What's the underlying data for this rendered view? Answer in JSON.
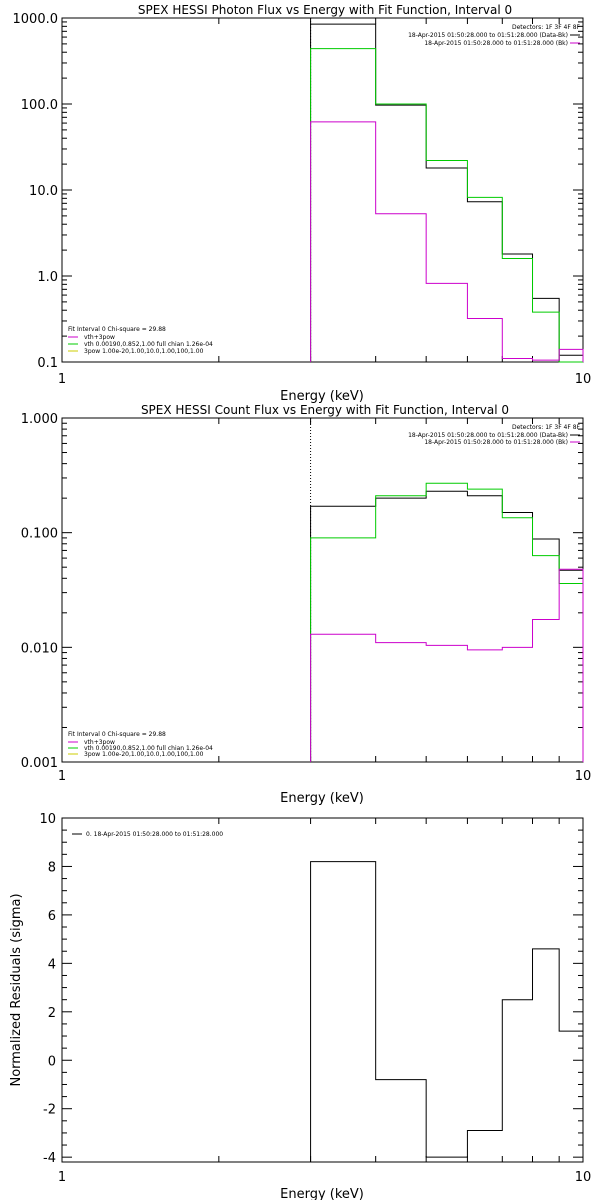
{
  "chart_data": [
    {
      "type": "line",
      "title": "SPEX HESSI Photon Flux vs Energy with Fit Function, Interval 0",
      "xlabel": "Energy (keV)",
      "ylabel": "",
      "xscale": "log",
      "yscale": "log",
      "xlim": [
        1,
        10
      ],
      "ylim": [
        0.1,
        1000
      ],
      "x_tick_labels": [
        "1",
        "10"
      ],
      "y_tick_labels": [
        "1000.0",
        "100.0",
        "10.0",
        "1.0",
        "0.1"
      ],
      "fit_energy_marker": 3.0,
      "bin_edges": [
        3.0,
        4.0,
        5.0,
        6.0,
        7.0,
        8.0,
        9.0,
        10.0
      ],
      "series": [
        {
          "name": "data",
          "color": "#000000",
          "values": [
            850,
            97,
            18,
            7.3,
            1.8,
            0.55,
            0.12
          ]
        },
        {
          "name": "vth+3pow",
          "color": "#00cc00",
          "values": [
            440,
            100,
            22,
            8.2,
            1.6,
            0.38,
            0.1
          ]
        },
        {
          "name": "3pow",
          "color": "#cc00cc",
          "values": [
            62,
            5.3,
            0.82,
            0.32,
            0.11,
            0.105,
            0.14
          ]
        }
      ],
      "legend_top_right": [
        "Detectors: 1F 3F 4F 8F",
        "18-Apr-2015 01:50:28.000 to 01:51:28.000 (Data-Bk)",
        "18-Apr-2015 01:50:28.000 to 01:51:28.000 (Bk)"
      ],
      "legend_bottom_left": [
        "Fit Interval 0   Chi-square = 29.88",
        "vth+3pow",
        "vth 0.00190,0.852,1.00  full chian 1.26e-04",
        "3pow 1.00e-20,1.00,10.0,1.00,100,1.00"
      ]
    },
    {
      "type": "line",
      "title": "SPEX HESSI Count Flux vs Energy with Fit Function, Interval 0",
      "xlabel": "Energy (keV)",
      "ylabel": "",
      "xscale": "log",
      "yscale": "log",
      "xlim": [
        1,
        10
      ],
      "ylim": [
        0.001,
        1
      ],
      "x_tick_labels": [
        "1",
        "10"
      ],
      "y_tick_labels": [
        "1.000",
        "0.100",
        "0.010",
        "0.001"
      ],
      "fit_energy_marker": 3.0,
      "bin_edges": [
        3.0,
        4.0,
        5.0,
        6.0,
        7.0,
        8.0,
        9.0,
        10.0
      ],
      "series": [
        {
          "name": "data",
          "color": "#000000",
          "values": [
            0.17,
            0.2,
            0.23,
            0.21,
            0.15,
            0.088,
            0.047
          ]
        },
        {
          "name": "vth+3pow",
          "color": "#00cc00",
          "values": [
            0.09,
            0.21,
            0.27,
            0.24,
            0.135,
            0.063,
            0.036
          ]
        },
        {
          "name": "3pow",
          "color": "#cc00cc",
          "values": [
            0.013,
            0.011,
            0.0104,
            0.0095,
            0.01,
            0.0175,
            0.048
          ]
        }
      ],
      "legend_top_right": [
        "Detectors: 1F 3F 4F 8F",
        "18-Apr-2015 01:50:28.000 to 01:51:28.000 (Data-Bk)",
        "18-Apr-2015 01:50:28.000 to 01:51:28.000 (Bk)"
      ],
      "legend_bottom_left": [
        "Fit Interval 0   Chi-square = 29.88",
        "vth+3pow",
        "vth 0.00190,0.852,1.00  full chian 1.26e-04",
        "3pow 1.00e-20,1.00,10.0,1.00,100,1.00"
      ]
    },
    {
      "type": "line",
      "title": "",
      "xlabel": "Energy (keV)",
      "ylabel": "Normalized Residuals (sigma)",
      "xscale": "log",
      "yscale": "linear",
      "xlim": [
        1,
        10
      ],
      "ylim": [
        -4.2,
        10
      ],
      "x_tick_labels": [
        "1",
        "10"
      ],
      "y_tick_values": [
        10,
        8,
        6,
        4,
        2,
        0,
        -2,
        -4
      ],
      "bin_edges": [
        3.0,
        4.0,
        5.0,
        6.0,
        7.0,
        8.0,
        9.0,
        10.0
      ],
      "series": [
        {
          "name": "0. 18-Apr-2015 01:50:28.000 to 01:51:28.000",
          "color": "#000000",
          "values": [
            8.2,
            -0.8,
            -4.0,
            -2.9,
            2.5,
            4.6,
            1.2
          ]
        }
      ]
    }
  ]
}
